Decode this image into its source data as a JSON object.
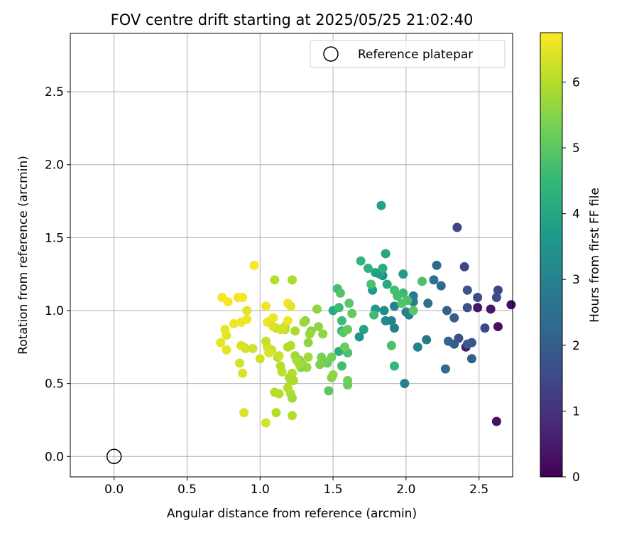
{
  "chart_data": {
    "type": "scatter",
    "title": "FOV centre drift starting at 2025/05/25 21:02:40",
    "xlabel": "Angular distance from reference (arcmin)",
    "ylabel": "Rotation from reference (arcmin)",
    "xlim": [
      -0.3,
      2.73
    ],
    "ylim": [
      -0.14,
      2.9
    ],
    "xticks": [
      "0.0",
      "0.5",
      "1.0",
      "1.5",
      "2.0",
      "2.5"
    ],
    "yticks": [
      "0.0",
      "0.5",
      "1.0",
      "1.5",
      "2.0",
      "2.5"
    ],
    "grid": true,
    "legend": {
      "position": "top-right",
      "entries": [
        "Reference platepar"
      ]
    },
    "reference_point": {
      "x": 0.0,
      "y": 0.0,
      "label": "Reference platepar"
    },
    "colorbar": {
      "label": "Hours from first FF file",
      "min": 0,
      "max": 6.75,
      "ticks": [
        "0",
        "1",
        "2",
        "3",
        "4",
        "5",
        "6"
      ],
      "colormap": "viridis",
      "stops": [
        "#440154",
        "#482878",
        "#3e4989",
        "#31688e",
        "#26828e",
        "#1f9e89",
        "#35b779",
        "#6ece58",
        "#b5de2b",
        "#fde725"
      ]
    },
    "points": [
      {
        "x": 2.75,
        "y": 0.88,
        "t": 0.1
      },
      {
        "x": 2.72,
        "y": 1.04,
        "t": 0.2
      },
      {
        "x": 2.62,
        "y": 0.24,
        "t": 0.3
      },
      {
        "x": 2.63,
        "y": 0.89,
        "t": 0.3
      },
      {
        "x": 2.58,
        "y": 1.01,
        "t": 0.4
      },
      {
        "x": 2.49,
        "y": 1.02,
        "t": 0.4
      },
      {
        "x": 2.41,
        "y": 0.75,
        "t": 0.5
      },
      {
        "x": 2.35,
        "y": 1.57,
        "t": 1.4
      },
      {
        "x": 2.4,
        "y": 1.3,
        "t": 1.4
      },
      {
        "x": 2.54,
        "y": 0.88,
        "t": 1.5
      },
      {
        "x": 2.63,
        "y": 1.14,
        "t": 1.5
      },
      {
        "x": 2.62,
        "y": 1.09,
        "t": 1.6
      },
      {
        "x": 2.49,
        "y": 1.09,
        "t": 1.6
      },
      {
        "x": 2.42,
        "y": 1.02,
        "t": 1.7
      },
      {
        "x": 2.36,
        "y": 0.81,
        "t": 1.6
      },
      {
        "x": 2.42,
        "y": 1.14,
        "t": 1.8
      },
      {
        "x": 2.45,
        "y": 0.78,
        "t": 1.8
      },
      {
        "x": 2.42,
        "y": 0.77,
        "t": 1.9
      },
      {
        "x": 2.45,
        "y": 0.67,
        "t": 2.0
      },
      {
        "x": 2.33,
        "y": 0.77,
        "t": 2.0
      },
      {
        "x": 2.33,
        "y": 0.95,
        "t": 2.0
      },
      {
        "x": 2.28,
        "y": 1.0,
        "t": 2.1
      },
      {
        "x": 2.29,
        "y": 0.79,
        "t": 2.2
      },
      {
        "x": 2.27,
        "y": 0.6,
        "t": 2.4
      },
      {
        "x": 2.21,
        "y": 1.31,
        "t": 2.3
      },
      {
        "x": 2.24,
        "y": 1.17,
        "t": 2.3
      },
      {
        "x": 2.19,
        "y": 1.21,
        "t": 2.5
      },
      {
        "x": 2.15,
        "y": 1.05,
        "t": 2.5
      },
      {
        "x": 2.14,
        "y": 0.8,
        "t": 2.7
      },
      {
        "x": 2.08,
        "y": 0.75,
        "t": 3.0
      },
      {
        "x": 2.05,
        "y": 1.06,
        "t": 2.8
      },
      {
        "x": 2.05,
        "y": 1.1,
        "t": 2.8
      },
      {
        "x": 2.02,
        "y": 0.97,
        "t": 3.0
      },
      {
        "x": 2.0,
        "y": 0.99,
        "t": 3.0
      },
      {
        "x": 1.99,
        "y": 0.5,
        "t": 3.0
      },
      {
        "x": 1.92,
        "y": 0.88,
        "t": 2.9
      },
      {
        "x": 1.92,
        "y": 1.03,
        "t": 3.0
      },
      {
        "x": 1.9,
        "y": 0.93,
        "t": 3.0
      },
      {
        "x": 1.86,
        "y": 0.93,
        "t": 3.2
      },
      {
        "x": 1.85,
        "y": 1.0,
        "t": 3.3
      },
      {
        "x": 1.84,
        "y": 1.24,
        "t": 3.4
      },
      {
        "x": 1.79,
        "y": 1.01,
        "t": 3.6
      },
      {
        "x": 1.77,
        "y": 1.14,
        "t": 3.7
      },
      {
        "x": 1.79,
        "y": 1.26,
        "t": 3.9
      },
      {
        "x": 1.82,
        "y": 1.25,
        "t": 3.8
      },
      {
        "x": 1.83,
        "y": 1.72,
        "t": 3.9
      },
      {
        "x": 1.86,
        "y": 1.39,
        "t": 4.0
      },
      {
        "x": 1.87,
        "y": 1.18,
        "t": 4.1
      },
      {
        "x": 1.98,
        "y": 1.25,
        "t": 3.6
      },
      {
        "x": 1.71,
        "y": 0.87,
        "t": 3.9
      },
      {
        "x": 1.68,
        "y": 0.82,
        "t": 3.5
      },
      {
        "x": 1.69,
        "y": 1.34,
        "t": 4.4
      },
      {
        "x": 1.74,
        "y": 1.29,
        "t": 4.3
      },
      {
        "x": 1.84,
        "y": 1.29,
        "t": 4.2
      },
      {
        "x": 1.78,
        "y": 0.97,
        "t": 4.6
      },
      {
        "x": 1.76,
        "y": 1.18,
        "t": 4.8
      },
      {
        "x": 1.92,
        "y": 1.14,
        "t": 4.7
      },
      {
        "x": 1.98,
        "y": 1.12,
        "t": 4.6
      },
      {
        "x": 2.01,
        "y": 1.07,
        "t": 4.8
      },
      {
        "x": 2.05,
        "y": 1.0,
        "t": 5.0
      },
      {
        "x": 2.11,
        "y": 1.2,
        "t": 4.8
      },
      {
        "x": 1.97,
        "y": 1.05,
        "t": 4.9
      },
      {
        "x": 1.9,
        "y": 0.76,
        "t": 4.8
      },
      {
        "x": 1.92,
        "y": 0.62,
        "t": 4.5
      },
      {
        "x": 1.94,
        "y": 1.1,
        "t": 4.7
      },
      {
        "x": 1.54,
        "y": 0.72,
        "t": 4.2
      },
      {
        "x": 1.56,
        "y": 0.86,
        "t": 4.3
      },
      {
        "x": 1.5,
        "y": 1.0,
        "t": 4.1
      },
      {
        "x": 1.56,
        "y": 0.93,
        "t": 4.6
      },
      {
        "x": 1.54,
        "y": 1.02,
        "t": 4.6
      },
      {
        "x": 1.53,
        "y": 1.15,
        "t": 4.7
      },
      {
        "x": 1.55,
        "y": 1.12,
        "t": 4.9
      },
      {
        "x": 1.56,
        "y": 0.62,
        "t": 4.7
      },
      {
        "x": 1.6,
        "y": 0.71,
        "t": 4.8
      },
      {
        "x": 1.61,
        "y": 1.05,
        "t": 5.0
      },
      {
        "x": 1.63,
        "y": 0.98,
        "t": 5.1
      },
      {
        "x": 1.57,
        "y": 0.85,
        "t": 5.0
      },
      {
        "x": 1.6,
        "y": 0.87,
        "t": 5.1
      },
      {
        "x": 1.58,
        "y": 0.75,
        "t": 5.2
      },
      {
        "x": 1.6,
        "y": 0.52,
        "t": 5.3
      },
      {
        "x": 1.6,
        "y": 0.49,
        "t": 5.2
      },
      {
        "x": 1.47,
        "y": 0.45,
        "t": 5.0
      },
      {
        "x": 1.46,
        "y": 0.64,
        "t": 5.2
      },
      {
        "x": 1.49,
        "y": 0.68,
        "t": 5.3
      },
      {
        "x": 1.42,
        "y": 0.68,
        "t": 5.4
      },
      {
        "x": 1.44,
        "y": 0.65,
        "t": 5.3
      },
      {
        "x": 1.41,
        "y": 0.63,
        "t": 5.4
      },
      {
        "x": 1.49,
        "y": 0.54,
        "t": 5.5
      },
      {
        "x": 1.5,
        "y": 0.56,
        "t": 5.6
      },
      {
        "x": 1.35,
        "y": 0.86,
        "t": 5.5
      },
      {
        "x": 1.4,
        "y": 0.89,
        "t": 5.6
      },
      {
        "x": 1.43,
        "y": 0.84,
        "t": 5.6
      },
      {
        "x": 1.31,
        "y": 0.93,
        "t": 5.5
      },
      {
        "x": 1.39,
        "y": 1.01,
        "t": 5.6
      },
      {
        "x": 1.3,
        "y": 0.92,
        "t": 5.7
      },
      {
        "x": 1.34,
        "y": 0.84,
        "t": 5.7
      },
      {
        "x": 1.33,
        "y": 0.78,
        "t": 5.6
      },
      {
        "x": 1.33,
        "y": 0.68,
        "t": 5.8
      },
      {
        "x": 1.29,
        "y": 0.63,
        "t": 5.5
      },
      {
        "x": 1.32,
        "y": 0.61,
        "t": 5.7
      },
      {
        "x": 1.27,
        "y": 0.66,
        "t": 5.6
      },
      {
        "x": 1.28,
        "y": 0.61,
        "t": 5.5
      },
      {
        "x": 1.25,
        "y": 0.66,
        "t": 5.9
      },
      {
        "x": 1.24,
        "y": 0.69,
        "t": 5.8
      },
      {
        "x": 1.21,
        "y": 0.52,
        "t": 5.9
      },
      {
        "x": 1.23,
        "y": 0.52,
        "t": 5.9
      },
      {
        "x": 1.22,
        "y": 0.57,
        "t": 6.0
      },
      {
        "x": 1.2,
        "y": 0.54,
        "t": 5.9
      },
      {
        "x": 1.21,
        "y": 0.43,
        "t": 6.0
      },
      {
        "x": 1.19,
        "y": 0.47,
        "t": 6.0
      },
      {
        "x": 1.22,
        "y": 0.4,
        "t": 5.8
      },
      {
        "x": 1.22,
        "y": 0.28,
        "t": 6.0
      },
      {
        "x": 1.22,
        "y": 1.21,
        "t": 5.9
      },
      {
        "x": 1.13,
        "y": 0.43,
        "t": 6.0
      },
      {
        "x": 1.14,
        "y": 0.62,
        "t": 6.0
      },
      {
        "x": 1.15,
        "y": 0.58,
        "t": 6.1
      },
      {
        "x": 1.17,
        "y": 0.87,
        "t": 6.1
      },
      {
        "x": 1.12,
        "y": 0.68,
        "t": 6.0
      },
      {
        "x": 1.11,
        "y": 0.88,
        "t": 6.1
      },
      {
        "x": 1.11,
        "y": 0.3,
        "t": 6.0
      },
      {
        "x": 1.1,
        "y": 0.44,
        "t": 6.0
      },
      {
        "x": 1.1,
        "y": 1.21,
        "t": 6.0
      },
      {
        "x": 1.17,
        "y": 0.89,
        "t": 5.8
      },
      {
        "x": 1.21,
        "y": 0.76,
        "t": 6.0
      },
      {
        "x": 1.24,
        "y": 0.86,
        "t": 5.9
      },
      {
        "x": 1.19,
        "y": 0.75,
        "t": 6.0
      },
      {
        "x": 1.27,
        "y": 0.63,
        "t": 5.8
      },
      {
        "x": 1.05,
        "y": 0.75,
        "t": 6.3
      },
      {
        "x": 1.08,
        "y": 0.73,
        "t": 6.2
      },
      {
        "x": 1.06,
        "y": 0.71,
        "t": 6.4
      },
      {
        "x": 1.04,
        "y": 0.79,
        "t": 6.2
      },
      {
        "x": 1.0,
        "y": 0.67,
        "t": 6.3
      },
      {
        "x": 1.04,
        "y": 0.23,
        "t": 6.3
      },
      {
        "x": 0.95,
        "y": 0.74,
        "t": 6.3
      },
      {
        "x": 1.04,
        "y": 1.03,
        "t": 6.6
      },
      {
        "x": 1.07,
        "y": 0.93,
        "t": 6.5
      },
      {
        "x": 1.09,
        "y": 0.95,
        "t": 6.6
      },
      {
        "x": 1.05,
        "y": 0.92,
        "t": 6.6
      },
      {
        "x": 1.09,
        "y": 0.89,
        "t": 6.4
      },
      {
        "x": 1.14,
        "y": 0.87,
        "t": 6.3
      },
      {
        "x": 1.16,
        "y": 0.88,
        "t": 6.3
      },
      {
        "x": 1.19,
        "y": 1.05,
        "t": 6.7
      },
      {
        "x": 1.21,
        "y": 1.03,
        "t": 6.5
      },
      {
        "x": 1.19,
        "y": 0.93,
        "t": 6.6
      },
      {
        "x": 1.13,
        "y": 0.69,
        "t": 6.2
      },
      {
        "x": 0.96,
        "y": 1.31,
        "t": 6.7
      },
      {
        "x": 0.91,
        "y": 0.94,
        "t": 6.6
      },
      {
        "x": 0.91,
        "y": 1.0,
        "t": 6.5
      },
      {
        "x": 0.89,
        "y": 0.75,
        "t": 6.4
      },
      {
        "x": 0.9,
        "y": 0.74,
        "t": 6.3
      },
      {
        "x": 0.87,
        "y": 0.76,
        "t": 6.4
      },
      {
        "x": 0.86,
        "y": 0.64,
        "t": 6.3
      },
      {
        "x": 0.88,
        "y": 0.57,
        "t": 6.4
      },
      {
        "x": 0.89,
        "y": 0.3,
        "t": 6.4
      },
      {
        "x": 0.87,
        "y": 0.92,
        "t": 6.6
      },
      {
        "x": 0.85,
        "y": 1.09,
        "t": 6.6
      },
      {
        "x": 0.88,
        "y": 1.09,
        "t": 6.7
      },
      {
        "x": 0.82,
        "y": 0.91,
        "t": 6.6
      },
      {
        "x": 0.78,
        "y": 1.06,
        "t": 6.7
      },
      {
        "x": 0.77,
        "y": 0.83,
        "t": 6.5
      },
      {
        "x": 0.76,
        "y": 0.87,
        "t": 6.5
      },
      {
        "x": 0.74,
        "y": 1.09,
        "t": 6.7
      },
      {
        "x": 0.73,
        "y": 0.78,
        "t": 6.5
      },
      {
        "x": 0.77,
        "y": 0.73,
        "t": 6.5
      }
    ]
  }
}
